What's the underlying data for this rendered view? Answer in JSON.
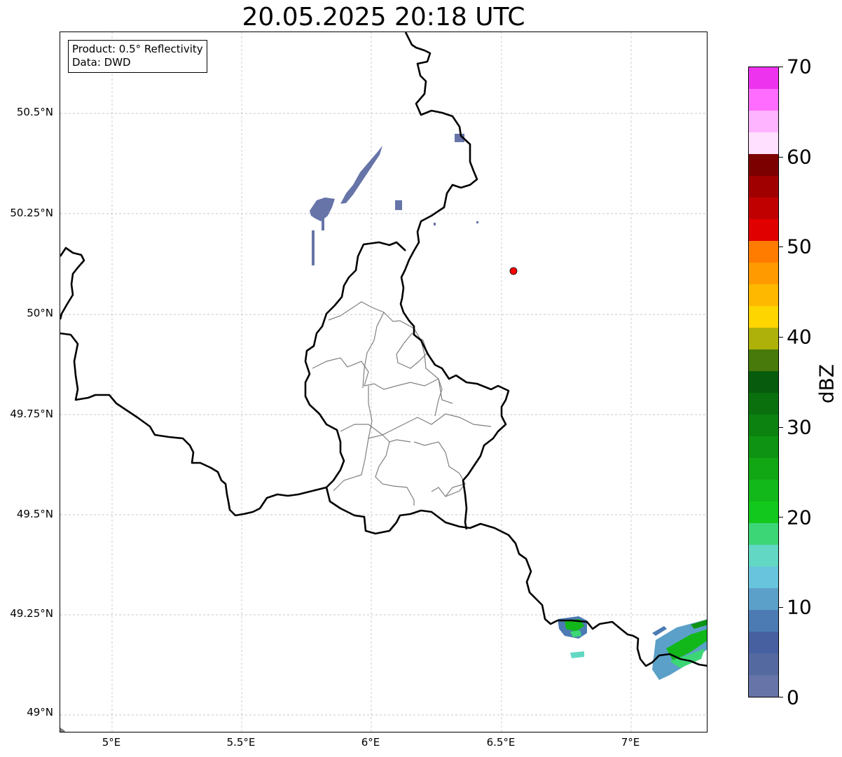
{
  "title": "20.05.2025 20:18 UTC",
  "info": {
    "product": "Product: 0.5° Reflectivity",
    "source": "Data: DWD"
  },
  "axes": {
    "lat_ticks": [
      "50.5°N",
      "50.25°N",
      "50°N",
      "49.75°N",
      "49.5°N",
      "49.25°N",
      "49°N"
    ],
    "lon_ticks": [
      "5°E",
      "5.5°E",
      "6°E",
      "6.5°E",
      "7°E"
    ]
  },
  "colorbar": {
    "label": "dBZ",
    "ticks": [
      "0",
      "10",
      "20",
      "30",
      "40",
      "50",
      "60",
      "70"
    ],
    "colors": [
      "#6674a8",
      "#5469a0",
      "#4660a0",
      "#4c7bb3",
      "#5ba0c8",
      "#68c4dc",
      "#62d8c4",
      "#3dd676",
      "#12c81c",
      "#12b81a",
      "#10a614",
      "#0e9412",
      "#0c8210",
      "#0a700e",
      "#065c0c",
      "#477a0a",
      "#adb10a",
      "#ffd500",
      "#ffb800",
      "#ff9a00",
      "#ff7c00",
      "#e00000",
      "#c00000",
      "#a00000",
      "#7c0000",
      "#ffe0ff",
      "#ffb4ff",
      "#ff6cff",
      "#ee33ee"
    ]
  },
  "station": {
    "label": "radar-site",
    "color": "#ff0000"
  },
  "grid": true
}
